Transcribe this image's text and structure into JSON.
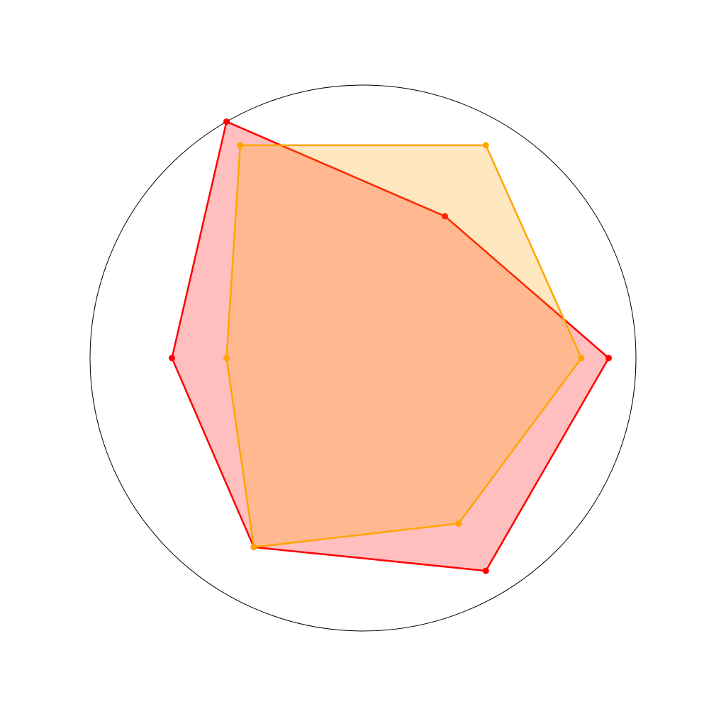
{
  "chart_data": {
    "type": "radar",
    "rlim": [
      0,
      1
    ],
    "series": [
      {
        "color": "#ff0000",
        "values": [
          0.9,
          0.6,
          1.0,
          0.7,
          0.8,
          0.9
        ]
      },
      {
        "color": "#ffa500",
        "values": [
          0.8,
          0.9,
          0.9,
          0.5,
          0.8,
          0.7
        ]
      }
    ]
  }
}
